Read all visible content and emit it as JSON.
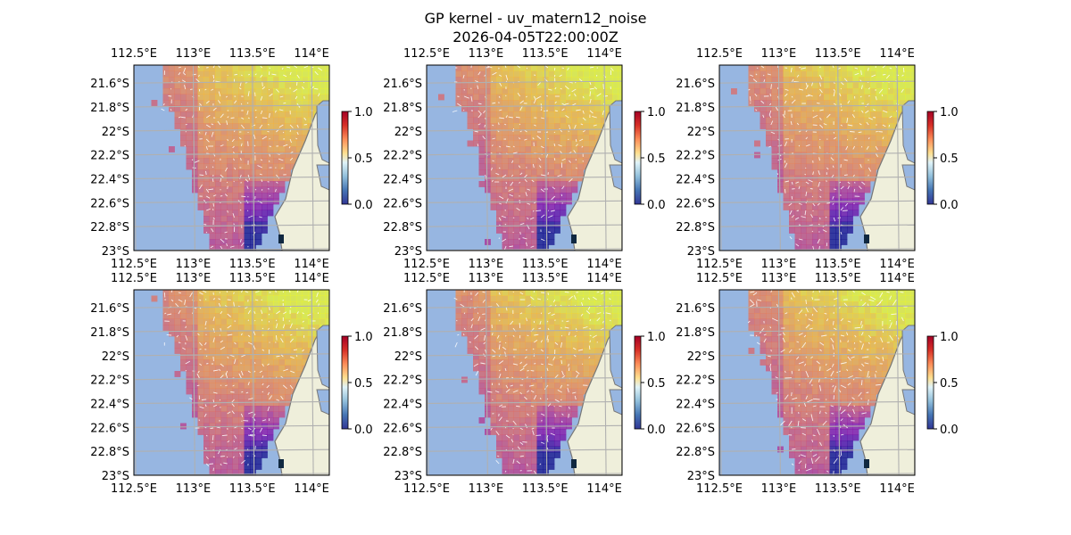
{
  "figure": {
    "title_line1": "GP kernel - uv_matern12_noise",
    "title_line2": "2026-04-05T22:00:00Z"
  },
  "chart_data": {
    "type": "heatmap",
    "panel_count": 6,
    "layout": "2 rows x 3 columns",
    "lon_ticks": [
      "112.5°E",
      "113°E",
      "113.5°E",
      "114°E"
    ],
    "lat_ticks": [
      "21.6°S",
      "21.8°S",
      "22°S",
      "22.2°S",
      "22.4°S",
      "22.6°S",
      "22.8°S",
      "23°S"
    ],
    "lon_tick_values": [
      112.5,
      113.0,
      113.5,
      114.0
    ],
    "lat_tick_values": [
      -21.6,
      -21.8,
      -22.0,
      -22.2,
      -22.4,
      -22.6,
      -22.8,
      -23.0
    ],
    "lon_range": [
      112.5,
      114.15
    ],
    "lat_range": [
      -23.0,
      -21.45
    ],
    "grid": true,
    "colorbar": {
      "ticks": [
        "0.0",
        "0.5",
        "1.0"
      ],
      "range": [
        0,
        1
      ],
      "colormap": "RdYlBu_r"
    },
    "field_colormap": "plasma",
    "ocean_mask_color": "#97b6e1",
    "land_color": "#efefdb",
    "vectors": "white quiver arrows (velocity field)"
  }
}
